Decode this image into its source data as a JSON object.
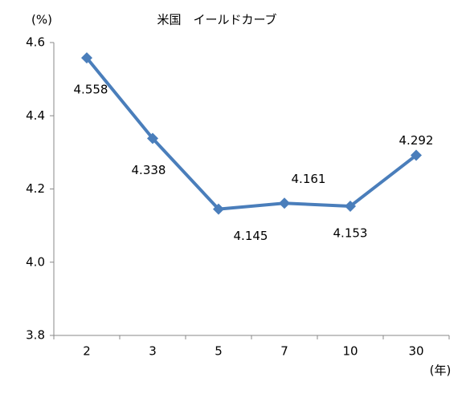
{
  "chart_data": {
    "type": "line",
    "title": "米国　イールドカーブ",
    "y_label": "(%)",
    "x_label": "(年)",
    "categories": [
      "2",
      "3",
      "5",
      "7",
      "10",
      "30"
    ],
    "values": [
      4.558,
      4.338,
      4.145,
      4.161,
      4.153,
      4.292
    ],
    "color": "#4a7ebb",
    "ylim": [
      3.8,
      4.6
    ],
    "yticks": [
      3.8,
      {
        "value": 4,
        "label": "4.0"
      },
      4.2,
      4.4,
      4.6
    ],
    "grid": false
  }
}
